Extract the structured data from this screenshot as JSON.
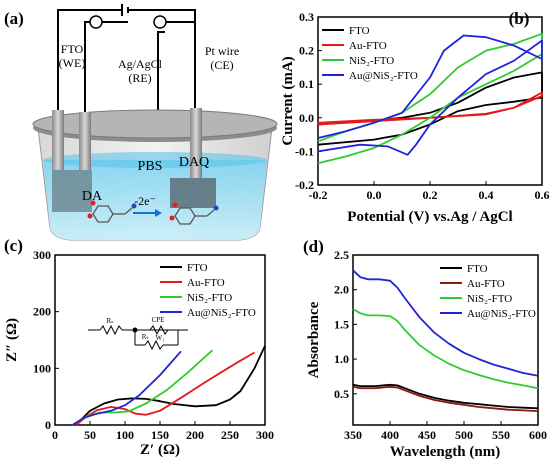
{
  "panels": {
    "a": {
      "label": "(a)",
      "electrodes": [
        {
          "line1": "FTO",
          "line2": "(WE)"
        },
        {
          "line1": "Ag/AgCl",
          "line2": "(RE)"
        },
        {
          "line1": "Pt wire",
          "line2": "(CE)"
        }
      ],
      "electrolyte": "PBS",
      "reactant": "DA",
      "product": "DAQ",
      "reaction": "-2e⁻"
    }
  },
  "colors": {
    "FTO": "#000000",
    "Au-FTO": "#e31a1c",
    "NiS2-FTO": "#2ecc2e",
    "Au@NiS2-FTO": "#1f24d9",
    "Au-FTO-d": "#8b1a0e"
  },
  "chart_data": [
    {
      "panel": "(b)",
      "type": "line",
      "xlabel": "Potential (V) vs.Ag / AgCl",
      "ylabel": "Current (mA)",
      "xlim": [
        -0.2,
        0.6
      ],
      "ylim": [
        -0.2,
        0.3
      ],
      "xticks": [
        "-0.2",
        "0.0",
        "0.2",
        "0.4",
        "0.6"
      ],
      "yticks": [
        "-0.2",
        "-0.1",
        "0.0",
        "0.1",
        "0.2",
        "0.3"
      ],
      "legend": "top-left",
      "series": [
        {
          "name": "FTO",
          "x": [
            -0.2,
            0.0,
            0.1,
            0.2,
            0.3,
            0.4,
            0.5,
            0.6,
            0.6,
            0.5,
            0.4,
            0.3,
            0.2,
            0.1,
            0.0,
            -0.2
          ],
          "y": [
            -0.02,
            -0.008,
            0.0,
            0.015,
            0.045,
            0.09,
            0.12,
            0.135,
            0.06,
            0.048,
            0.038,
            0.02,
            -0.02,
            -0.05,
            -0.065,
            -0.08
          ]
        },
        {
          "name": "Au-FTO",
          "x": [
            -0.2,
            0.0,
            0.2,
            0.4,
            0.5,
            0.6,
            0.6,
            0.5,
            0.4,
            0.2,
            0.0,
            -0.2
          ],
          "y": [
            -0.015,
            -0.006,
            0.0,
            0.01,
            0.03,
            0.075,
            0.065,
            0.03,
            0.012,
            0.0,
            -0.01,
            -0.02
          ]
        },
        {
          "name": "NiS2-FTO",
          "x": [
            -0.2,
            -0.1,
            0.0,
            0.1,
            0.2,
            0.3,
            0.4,
            0.5,
            0.6,
            0.6,
            0.5,
            0.4,
            0.3,
            0.2,
            0.1,
            0.0,
            -0.1,
            -0.2
          ],
          "y": [
            -0.07,
            -0.04,
            -0.015,
            0.015,
            0.07,
            0.15,
            0.2,
            0.22,
            0.25,
            0.19,
            0.14,
            0.1,
            0.06,
            0.0,
            -0.05,
            -0.09,
            -0.115,
            -0.135
          ]
        },
        {
          "name": "Au@NiS2-FTO",
          "x": [
            -0.2,
            -0.1,
            0.0,
            0.1,
            0.2,
            0.25,
            0.32,
            0.4,
            0.5,
            0.6,
            0.6,
            0.5,
            0.4,
            0.3,
            0.2,
            0.15,
            0.12,
            0.05,
            -0.05,
            -0.2
          ],
          "y": [
            -0.06,
            -0.04,
            -0.015,
            0.015,
            0.12,
            0.2,
            0.245,
            0.24,
            0.215,
            0.175,
            0.23,
            0.17,
            0.13,
            0.06,
            -0.02,
            -0.08,
            -0.11,
            -0.085,
            -0.08,
            -0.1
          ]
        }
      ]
    },
    {
      "panel": "(c)",
      "type": "line",
      "xlabel": "Z′ (Ω)",
      "ylabel": "Z″ (Ω)",
      "xlim": [
        0,
        300
      ],
      "ylim": [
        0,
        300
      ],
      "xticks": [
        "0",
        "50",
        "100",
        "150",
        "200",
        "250",
        "300"
      ],
      "yticks": [
        "0",
        "100",
        "200",
        "300"
      ],
      "legend": "top-right",
      "circuit": {
        "r1": "Rₛ",
        "r2": "Rₜ",
        "cpe": "CPE",
        "w": "W₁"
      },
      "series": [
        {
          "name": "FTO",
          "x": [
            30,
            50,
            70,
            90,
            110,
            130,
            150,
            170,
            200,
            230,
            250,
            265,
            285,
            300
          ],
          "y": [
            0,
            25,
            38,
            45,
            47,
            46,
            42,
            37,
            33,
            35,
            45,
            60,
            100,
            140
          ]
        },
        {
          "name": "Au-FTO",
          "x": [
            30,
            45,
            60,
            80,
            100,
            115,
            130,
            150,
            180,
            210,
            240,
            260,
            285
          ],
          "y": [
            0,
            15,
            26,
            32,
            28,
            20,
            18,
            25,
            48,
            72,
            95,
            110,
            128
          ]
        },
        {
          "name": "NiS2-FTO",
          "x": [
            25,
            45,
            65,
            85,
            105,
            130,
            160,
            190,
            225
          ],
          "y": [
            0,
            15,
            22,
            22,
            24,
            38,
            62,
            93,
            132
          ]
        },
        {
          "name": "Au@NiS2-FTO",
          "x": [
            25,
            40,
            60,
            80,
            100,
            120,
            150,
            180
          ],
          "y": [
            0,
            12,
            20,
            25,
            35,
            52,
            88,
            130
          ]
        }
      ]
    },
    {
      "panel": "(d)",
      "type": "line",
      "xlabel": "Wavelength (nm)",
      "ylabel": "Absorbance",
      "xlim": [
        350,
        600
      ],
      "ylim": [
        0.05,
        2.5
      ],
      "xticks": [
        "350",
        "400",
        "450",
        "500",
        "550",
        "600"
      ],
      "yticks": [
        "0.5",
        "1.0",
        "1.5",
        "2.0",
        "2.5"
      ],
      "legend": "top-right",
      "series": [
        {
          "name": "FTO",
          "x": [
            350,
            360,
            380,
            400,
            410,
            420,
            440,
            460,
            480,
            500,
            520,
            540,
            560,
            580,
            600
          ],
          "y": [
            0.63,
            0.61,
            0.61,
            0.63,
            0.62,
            0.58,
            0.5,
            0.44,
            0.4,
            0.37,
            0.35,
            0.33,
            0.31,
            0.3,
            0.29
          ]
        },
        {
          "name": "Au-FTO",
          "x": [
            350,
            360,
            380,
            400,
            410,
            420,
            440,
            460,
            480,
            500,
            520,
            540,
            560,
            580,
            600
          ],
          "y": [
            0.6,
            0.58,
            0.58,
            0.6,
            0.59,
            0.55,
            0.47,
            0.41,
            0.37,
            0.34,
            0.31,
            0.29,
            0.27,
            0.26,
            0.25
          ]
        },
        {
          "name": "NiS2-FTO",
          "x": [
            350,
            360,
            370,
            385,
            400,
            410,
            420,
            440,
            460,
            480,
            500,
            520,
            540,
            560,
            580,
            600
          ],
          "y": [
            1.72,
            1.66,
            1.63,
            1.63,
            1.62,
            1.55,
            1.42,
            1.2,
            1.05,
            0.93,
            0.84,
            0.77,
            0.71,
            0.66,
            0.62,
            0.58
          ]
        },
        {
          "name": "Au@NiS2-FTO",
          "x": [
            350,
            360,
            370,
            385,
            400,
            410,
            420,
            440,
            460,
            480,
            500,
            520,
            540,
            560,
            580,
            600
          ],
          "y": [
            2.28,
            2.18,
            2.15,
            2.15,
            2.13,
            2.03,
            1.88,
            1.6,
            1.38,
            1.22,
            1.09,
            1.0,
            0.92,
            0.86,
            0.8,
            0.76
          ]
        }
      ]
    }
  ]
}
